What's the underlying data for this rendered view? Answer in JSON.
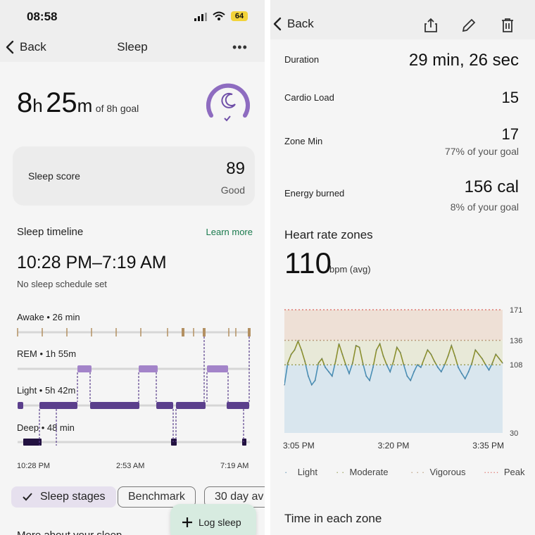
{
  "left": {
    "status": {
      "time": "08:58",
      "battery": "64"
    },
    "nav": {
      "back_label": "Back",
      "title": "Sleep",
      "more_label": "•••"
    },
    "duration": {
      "hours": "8",
      "hours_unit": "h",
      "minutes": "25",
      "minutes_unit": "m",
      "goal": "of 8h goal"
    },
    "sleep_score": {
      "label": "Sleep score",
      "value": "89",
      "rating": "Good"
    },
    "timeline": {
      "title": "Sleep timeline",
      "learn_more": "Learn more",
      "range": "10:28 PM–7:19 AM",
      "schedule": "No sleep schedule set",
      "stages": [
        {
          "label": "Awake • 26 min"
        },
        {
          "label": "REM • 1h 55m"
        },
        {
          "label": "Light • 5h 42m"
        },
        {
          "label": "Deep • 48 min"
        }
      ],
      "axis": [
        "10:28 PM",
        "2:53 AM",
        "7:19 AM"
      ]
    },
    "chips": [
      "Sleep stages",
      "Benchmark",
      "30 day av"
    ],
    "fab_label": "Log sleep",
    "peek_text": "More about your sleep"
  },
  "right": {
    "back_label": "Back",
    "stats": [
      {
        "label": "Duration",
        "value": "29 min, 26 sec",
        "sub": ""
      },
      {
        "label": "Cardio Load",
        "value": "15",
        "sub": ""
      },
      {
        "label": "Zone Min",
        "value": "17",
        "sub": "77% of your goal"
      },
      {
        "label": "Energy burned",
        "value": "156 cal",
        "sub": "8% of your goal"
      }
    ],
    "heart_rate": {
      "title": "Heart rate zones",
      "avg": "110",
      "unit": "bpm (avg)"
    },
    "chart_data": {
      "type": "line",
      "title": "",
      "xlabel": "",
      "ylabel": "",
      "x_tick_labels": [
        "3:05 PM",
        "3:20 PM",
        "3:35 PM"
      ],
      "y_ticks": [
        30,
        108,
        136,
        171
      ],
      "ylim": [
        30,
        171
      ],
      "x_minutes_range": [
        0,
        32
      ],
      "zones": [
        {
          "name": "Light",
          "from": 30,
          "to": 108,
          "color": "#d9e6ee"
        },
        {
          "name": "Moderate",
          "from": 108,
          "to": 136,
          "color": "#e8e9d8"
        },
        {
          "name": "Vigorous",
          "from": 136,
          "to": 171,
          "color": "#eee0d6"
        }
      ],
      "thresholds": [
        {
          "name": "Peak",
          "value": 171,
          "color": "#e07b74"
        },
        {
          "name": "Vigorous",
          "value": 136,
          "color": "#b99c7c"
        },
        {
          "name": "Moderate",
          "value": 108,
          "color": "#9aa05a"
        }
      ],
      "series": [
        {
          "name": "",
          "x": [
            0,
            0.5,
            1,
            1.5,
            2,
            2.5,
            3,
            3.5,
            4,
            4.5,
            5,
            5.5,
            6,
            6.5,
            7,
            7.5,
            8,
            8.5,
            9,
            9.5,
            10,
            10.5,
            11,
            11.5,
            12,
            12.5,
            13,
            13.5,
            14,
            14.5,
            15,
            15.5,
            16,
            16.5,
            17,
            17.5,
            18,
            18.5,
            19,
            19.5,
            20,
            20.5,
            21,
            21.5,
            22,
            22.5,
            23,
            23.5,
            24,
            24.5,
            25,
            25.5,
            26,
            26.5,
            27,
            27.5,
            28,
            28.5,
            29,
            29.5,
            30,
            30.5,
            31,
            31.5,
            32
          ],
          "y": [
            85,
            110,
            120,
            125,
            135,
            125,
            112,
            95,
            85,
            90,
            110,
            115,
            105,
            100,
            95,
            112,
            132,
            120,
            108,
            98,
            110,
            130,
            128,
            110,
            95,
            90,
            105,
            125,
            132,
            118,
            108,
            100,
            112,
            128,
            122,
            108,
            95,
            90,
            100,
            108,
            105,
            115,
            125,
            120,
            112,
            105,
            100,
            108,
            118,
            130,
            118,
            105,
            98,
            92,
            100,
            110,
            125,
            120,
            115,
            108,
            102,
            110,
            120,
            115,
            110
          ]
        }
      ],
      "legend": [
        "Light",
        "Moderate",
        "Vigorous",
        "Peak"
      ]
    },
    "time_in_zone_title": "Time in each zone"
  }
}
